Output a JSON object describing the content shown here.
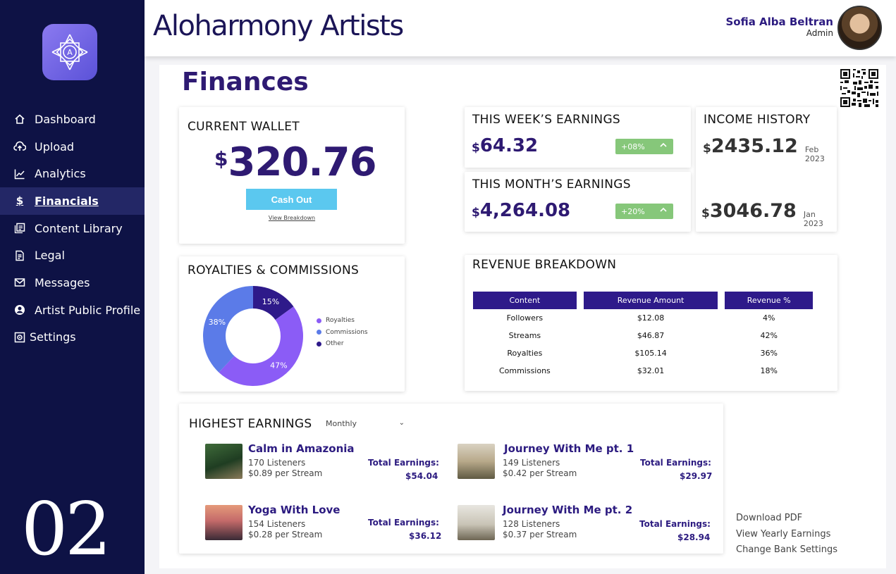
{
  "app": {
    "title": "Aloharmony Artists"
  },
  "user": {
    "name": "Sofia Alba Beltran",
    "role": "Admin"
  },
  "sidebar": {
    "items": [
      {
        "label": "Dashboard",
        "icon": "home-icon"
      },
      {
        "label": "Upload",
        "icon": "cloud-upload-icon"
      },
      {
        "label": "Analytics",
        "icon": "line-chart-icon"
      },
      {
        "label": "Financials",
        "icon": "dollar-icon",
        "active": true
      },
      {
        "label": "Content Library",
        "icon": "library-icon"
      },
      {
        "label": "Legal",
        "icon": "document-icon"
      },
      {
        "label": "Messages",
        "icon": "mail-icon"
      },
      {
        "label": "Artist Public Profile",
        "icon": "user-circle-icon"
      },
      {
        "label": "Settings",
        "icon": "gear-icon"
      }
    ],
    "page_number": "02"
  },
  "page": {
    "title": "Finances"
  },
  "wallet": {
    "title": "CURRENT WALLET",
    "currency": "$",
    "amount": "320.76",
    "cash_out_label": "Cash Out",
    "view_breakdown_label": "View Breakdown"
  },
  "week": {
    "title": "THIS WEEK’S EARNINGS",
    "currency": "$",
    "amount": "64.32",
    "change": "+08%"
  },
  "month": {
    "title": "THIS MONTH’S EARNINGS",
    "currency": "$",
    "amount": "4,264.08",
    "change": "+20%"
  },
  "history": {
    "title": "INCOME HISTORY",
    "entries": [
      {
        "currency": "$",
        "amount": "2435.12",
        "date": "Feb 2023"
      },
      {
        "currency": "$",
        "amount": "3046.78",
        "date": "Jan 2023"
      }
    ]
  },
  "royalties": {
    "title": "ROYALTIES & COMMISSIONS",
    "labels": [
      "15%",
      "47%",
      "38%"
    ]
  },
  "chart_data": {
    "type": "pie",
    "title": "ROYALTIES & COMMISSIONS",
    "series": [
      {
        "name": "Other",
        "value": 15,
        "color": "#2e1a8a"
      },
      {
        "name": "Royalties",
        "value": 47,
        "color": "#8b5cf6"
      },
      {
        "name": "Commissions",
        "value": 38,
        "color": "#5b7be8"
      }
    ],
    "legend": [
      "Royalties",
      "Commissions",
      "Other"
    ],
    "legend_position": "right"
  },
  "revenue": {
    "title": "REVENUE BREAKDOWN",
    "headers": [
      "Content",
      "Revenue Amount",
      "Revenue %"
    ],
    "rows": [
      [
        "Followers",
        "$12.08",
        "4%"
      ],
      [
        "Streams",
        "$46.87",
        "42%"
      ],
      [
        "Royalties",
        "$105.14",
        "36%"
      ],
      [
        "Commissions",
        "$32.01",
        "18%"
      ]
    ]
  },
  "highest": {
    "title": "HIGHEST EARNINGS",
    "period": "Monthly",
    "total_label": "Total Earnings:",
    "songs": [
      {
        "title": "Calm in Amazonia",
        "listeners": "170 Listeners",
        "per_stream": "$0.89 per Stream",
        "total": "$54.04"
      },
      {
        "title": "Journey With Me pt. 1",
        "listeners": "149 Listeners",
        "per_stream": "$0.42 per Stream",
        "total": "$29.97"
      },
      {
        "title": "Yoga With Love",
        "listeners": "154 Listeners",
        "per_stream": "$0.28 per Stream",
        "total": "$36.12"
      },
      {
        "title": "Journey With Me pt. 2",
        "listeners": "128 Listeners",
        "per_stream": "$0.37 per Stream",
        "total": "$28.94"
      }
    ]
  },
  "links": {
    "download_pdf": "Download PDF",
    "yearly": "View Yearly Earnings",
    "bank": "Change Bank Settings"
  },
  "colors": {
    "sidebar": "#0e1245",
    "accent": "#2e1a8a",
    "cash_out": "#5bc8ef",
    "positive": "#86c77a"
  }
}
